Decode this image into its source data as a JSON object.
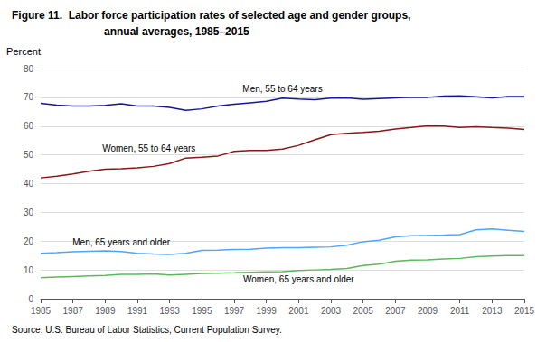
{
  "chart_data": {
    "type": "line",
    "title": "Figure 11.  Labor force participation rates of selected age and gender groups,",
    "subtitle": "annual averages, 1985–2015",
    "ylabel": "Percent",
    "annotations": [
      "Source: U.S. Bureau of Labor Statistics, Current Population Survey."
    ],
    "x": [
      1985,
      1986,
      1987,
      1988,
      1989,
      1990,
      1991,
      1992,
      1993,
      1994,
      1995,
      1996,
      1997,
      1998,
      1999,
      2000,
      2001,
      2002,
      2003,
      2004,
      2005,
      2006,
      2007,
      2008,
      2009,
      2010,
      2011,
      2012,
      2013,
      2014,
      2015
    ],
    "xlim": [
      1985,
      2015
    ],
    "xticks": [
      1985,
      1987,
      1989,
      1991,
      1993,
      1995,
      1997,
      1999,
      2001,
      2003,
      2005,
      2007,
      2009,
      2011,
      2013,
      2015
    ],
    "ylim": [
      0,
      80
    ],
    "yticks": [
      0,
      10,
      20,
      30,
      40,
      50,
      60,
      70,
      80
    ],
    "grid": true,
    "series": [
      {
        "name": "Men, 55 to 64 years",
        "color": "#1515a0",
        "values": [
          67.9,
          67.3,
          67.0,
          67.0,
          67.2,
          67.8,
          67.0,
          67.0,
          66.5,
          65.5,
          66.0,
          67.0,
          67.6,
          68.1,
          68.6,
          69.7,
          69.4,
          69.2,
          69.7,
          69.8,
          69.3,
          69.6,
          69.8,
          70.0,
          70.0,
          70.4,
          70.5,
          70.2,
          69.8,
          70.3,
          70.3
        ]
      },
      {
        "name": "Women, 55 to 64 years",
        "color": "#8b1515",
        "values": [
          42.0,
          42.6,
          43.4,
          44.3,
          45.0,
          45.2,
          45.5,
          46.0,
          47.0,
          48.9,
          49.2,
          49.6,
          51.2,
          51.5,
          51.5,
          52.0,
          53.3,
          55.2,
          57.0,
          57.5,
          57.8,
          58.2,
          59.0,
          59.5,
          60.1,
          60.0,
          59.5,
          59.8,
          59.5,
          59.3,
          58.8
        ]
      },
      {
        "name": "Men, 65 years and older",
        "color": "#4da6ff",
        "values": [
          15.8,
          16.0,
          16.3,
          16.5,
          16.6,
          16.4,
          15.8,
          15.5,
          15.4,
          15.8,
          16.8,
          16.9,
          17.1,
          17.2,
          17.6,
          17.7,
          17.7,
          17.9,
          18.0,
          18.6,
          19.8,
          20.3,
          21.5,
          21.9,
          22.0,
          22.1,
          22.3,
          23.9,
          24.2,
          23.8,
          23.4
        ]
      },
      {
        "name": "Women, 65 years and older",
        "color": "#5cb85c",
        "values": [
          7.3,
          7.5,
          7.7,
          7.9,
          8.1,
          8.5,
          8.5,
          8.6,
          8.2,
          8.5,
          8.8,
          8.9,
          9.0,
          9.2,
          9.3,
          9.4,
          9.8,
          10.0,
          10.2,
          10.5,
          11.5,
          12.0,
          13.0,
          13.4,
          13.5,
          13.8,
          14.0,
          14.6,
          14.8,
          15.0,
          15.0
        ]
      }
    ]
  }
}
